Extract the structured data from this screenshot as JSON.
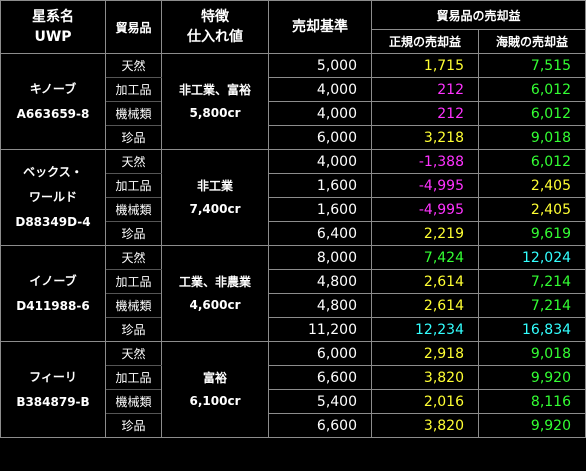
{
  "colors": {
    "yellow": "#ffff33",
    "magenta": "#ff33ff",
    "green": "#33ff33",
    "cyan": "#33ffff",
    "white": "#ffffff"
  },
  "header": {
    "world": [
      "星系名",
      "UWP"
    ],
    "goods": "貿易品",
    "features": [
      "特徴",
      "仕入れ値"
    ],
    "sale_base": "売却基準",
    "profit_title": "貿易品の売却益",
    "legit": "正規の売却益",
    "pirate": "海賊の売却益"
  },
  "worlds": [
    {
      "name": [
        "キノーブ",
        "A663659-8"
      ],
      "features": [
        "非工業、富裕",
        "5,800cr"
      ],
      "rows": [
        {
          "goods": "天然",
          "base": "5,000",
          "legit": "1,715",
          "legit_color": "yellow",
          "pirate": "7,515",
          "pirate_color": "green"
        },
        {
          "goods": "加工品",
          "base": "4,000",
          "legit": "212",
          "legit_color": "magenta",
          "pirate": "6,012",
          "pirate_color": "green"
        },
        {
          "goods": "機械類",
          "base": "4,000",
          "legit": "212",
          "legit_color": "magenta",
          "pirate": "6,012",
          "pirate_color": "green"
        },
        {
          "goods": "珍品",
          "base": "6,000",
          "legit": "3,218",
          "legit_color": "yellow",
          "pirate": "9,018",
          "pirate_color": "green"
        }
      ]
    },
    {
      "name": [
        "ベックス・",
        "ワールド",
        "D88349D-4"
      ],
      "features": [
        "非工業",
        "7,400cr"
      ],
      "rows": [
        {
          "goods": "天然",
          "base": "4,000",
          "legit": "-1,388",
          "legit_color": "magenta",
          "pirate": "6,012",
          "pirate_color": "green"
        },
        {
          "goods": "加工品",
          "base": "1,600",
          "legit": "-4,995",
          "legit_color": "magenta",
          "pirate": "2,405",
          "pirate_color": "yellow"
        },
        {
          "goods": "機械類",
          "base": "1,600",
          "legit": "-4,995",
          "legit_color": "magenta",
          "pirate": "2,405",
          "pirate_color": "yellow"
        },
        {
          "goods": "珍品",
          "base": "6,400",
          "legit": "2,219",
          "legit_color": "yellow",
          "pirate": "9,619",
          "pirate_color": "green"
        }
      ]
    },
    {
      "name": [
        "イノーブ",
        "D411988-6"
      ],
      "features": [
        "工業、非農業",
        "4,600cr"
      ],
      "rows": [
        {
          "goods": "天然",
          "base": "8,000",
          "legit": "7,424",
          "legit_color": "green",
          "pirate": "12,024",
          "pirate_color": "cyan"
        },
        {
          "goods": "加工品",
          "base": "4,800",
          "legit": "2,614",
          "legit_color": "yellow",
          "pirate": "7,214",
          "pirate_color": "green"
        },
        {
          "goods": "機械類",
          "base": "4,800",
          "legit": "2,614",
          "legit_color": "yellow",
          "pirate": "7,214",
          "pirate_color": "green"
        },
        {
          "goods": "珍品",
          "base": "11,200",
          "legit": "12,234",
          "legit_color": "cyan",
          "pirate": "16,834",
          "pirate_color": "cyan"
        }
      ]
    },
    {
      "name": [
        "フィーリ",
        "B384879-B"
      ],
      "features": [
        "富裕",
        "6,100cr"
      ],
      "rows": [
        {
          "goods": "天然",
          "base": "6,000",
          "legit": "2,918",
          "legit_color": "yellow",
          "pirate": "9,018",
          "pirate_color": "green"
        },
        {
          "goods": "加工品",
          "base": "6,600",
          "legit": "3,820",
          "legit_color": "yellow",
          "pirate": "9,920",
          "pirate_color": "green"
        },
        {
          "goods": "機械類",
          "base": "5,400",
          "legit": "2,016",
          "legit_color": "yellow",
          "pirate": "8,116",
          "pirate_color": "green"
        },
        {
          "goods": "珍品",
          "base": "6,600",
          "legit": "3,820",
          "legit_color": "yellow",
          "pirate": "9,920",
          "pirate_color": "green"
        }
      ]
    }
  ]
}
